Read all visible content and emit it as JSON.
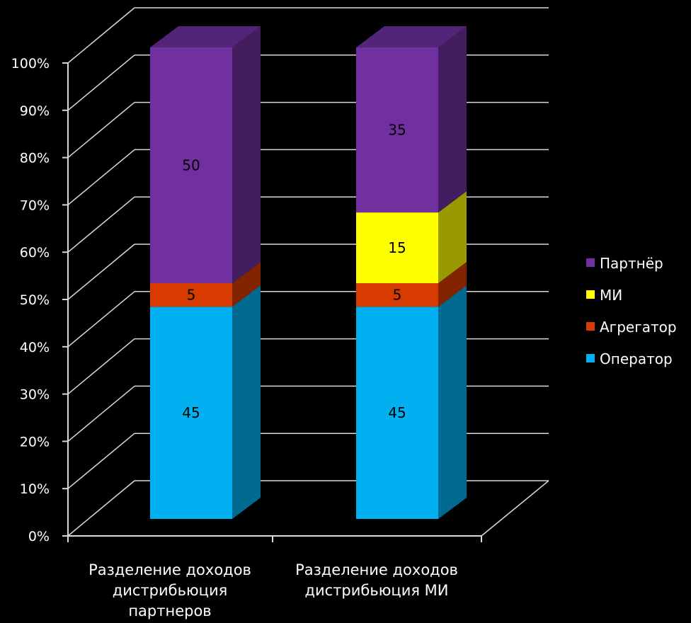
{
  "chart_data": {
    "type": "bar",
    "stacked": "percent",
    "three_d": true,
    "categories": [
      [
        "Разделение доходов",
        "дистрибьюция",
        "партнеров"
      ],
      [
        "Разделение доходов",
        "дистрибьюция МИ"
      ]
    ],
    "series": [
      {
        "name": "Оператор",
        "values": [
          45,
          45
        ],
        "color": "#00B0F0"
      },
      {
        "name": "Агрегатор",
        "values": [
          5,
          5
        ],
        "color": "#D83B01"
      },
      {
        "name": "МИ",
        "values": [
          0,
          15
        ],
        "color": "#FFFF00"
      },
      {
        "name": "Партнёр",
        "values": [
          50,
          35
        ],
        "color": "#7030A0"
      }
    ],
    "yticks": [
      "0%",
      "10%",
      "20%",
      "30%",
      "40%",
      "50%",
      "60%",
      "70%",
      "80%",
      "90%",
      "100%"
    ],
    "ylim": [
      0,
      100
    ],
    "grid": true,
    "legend_position": "right",
    "legend_order": [
      "Партнёр",
      "МИ",
      "Агрегатор",
      "Оператор"
    ],
    "background": "#000000",
    "axis_color": "#D9D9D9"
  }
}
